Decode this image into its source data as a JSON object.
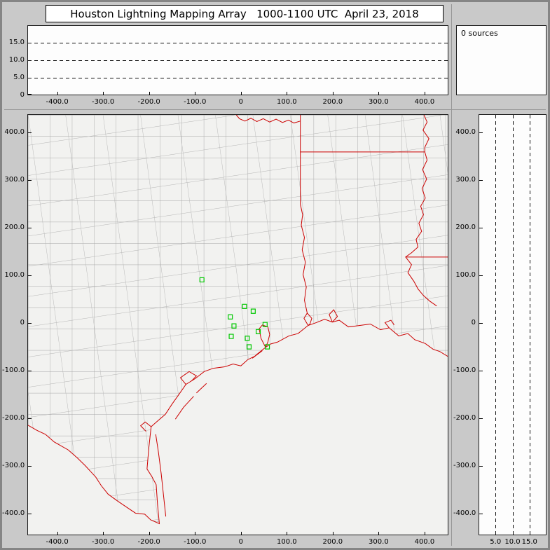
{
  "window": {
    "title": "Houston Lightning Mapping Array   1000-1100 UTC  April 23, 2018"
  },
  "status": {
    "sources_label": "0 sources"
  },
  "colors": {
    "county_line": "#a6a6a6",
    "state_border": "#cc0000",
    "station_marker": "#00c800",
    "panel_bg": "#fdfdfd",
    "map_bg": "#f2f2f0",
    "window_bg": "#c9c9c9"
  },
  "axes": {
    "horizontal_km": {
      "values": [
        -400,
        -300,
        -200,
        -100,
        0,
        100,
        200,
        300,
        400
      ],
      "labels": [
        "-400.0",
        "-300.0",
        "-200.0",
        "-100.0",
        "0",
        "100.0",
        "200.0",
        "300.0",
        "400.0"
      ]
    },
    "vertical_km": {
      "values": [
        400,
        300,
        200,
        100,
        0,
        -100,
        -200,
        -300,
        -400
      ],
      "labels": [
        "400.0",
        "300.0",
        "200.0",
        "100.0",
        "0",
        "-100.0",
        "-200.0",
        "-300.0",
        "-400.0"
      ]
    },
    "altitude_left": {
      "values": [
        0,
        5,
        10,
        15
      ],
      "labels": [
        "0",
        "5.0",
        "10.0",
        "15.0"
      ]
    },
    "altitude_bottom": {
      "values": [
        5,
        10,
        15
      ],
      "labels": [
        "5.0",
        "10.0",
        "15.0"
      ]
    },
    "altitude_gridlines": [
      5,
      10,
      15
    ]
  },
  "chart_data": [
    {
      "type": "scatter",
      "panel": "altitude-vs-eastwest",
      "xlim": [
        -465,
        452
      ],
      "ylim": [
        0,
        20
      ],
      "xticks": [
        -400,
        -300,
        -200,
        -100,
        0,
        100,
        200,
        300,
        400
      ],
      "yticks": [
        0,
        5,
        10,
        15
      ],
      "gridlines_y": [
        5,
        10,
        15
      ],
      "x": [],
      "y": [],
      "note": "empty - 0 sources in 1000-1100 UTC window"
    },
    {
      "type": "scatter",
      "panel": "plan-view-map",
      "xlim": [
        -465,
        452
      ],
      "ylim": [
        -445,
        438
      ],
      "xticks": [
        -400,
        -300,
        -200,
        -100,
        0,
        100,
        200,
        300,
        400
      ],
      "yticks": [
        400,
        300,
        200,
        100,
        0,
        -100,
        -200,
        -300,
        -400
      ],
      "stations_km": [
        [
          -85,
          91
        ],
        [
          8,
          35
        ],
        [
          -23,
          13
        ],
        [
          27,
          25
        ],
        [
          -15,
          -6
        ],
        [
          -21,
          -28
        ],
        [
          14,
          -32
        ],
        [
          53,
          -3
        ],
        [
          38,
          -18
        ],
        [
          18,
          -50
        ],
        [
          58,
          -50
        ]
      ],
      "series": [
        {
          "name": "lightning-sources",
          "x": [],
          "y": []
        }
      ]
    },
    {
      "type": "scatter",
      "panel": "altitude-vs-northsouth",
      "xlim": [
        0,
        20
      ],
      "ylim": [
        -445,
        438
      ],
      "xticks": [
        5,
        10,
        15
      ],
      "yticks": [
        400,
        300,
        200,
        100,
        0,
        -100,
        -200,
        -300,
        -400
      ],
      "gridlines_x": [
        5,
        10,
        15
      ],
      "x": [],
      "y": [],
      "note": "empty - 0 sources in 1000-1100 UTC window"
    }
  ]
}
